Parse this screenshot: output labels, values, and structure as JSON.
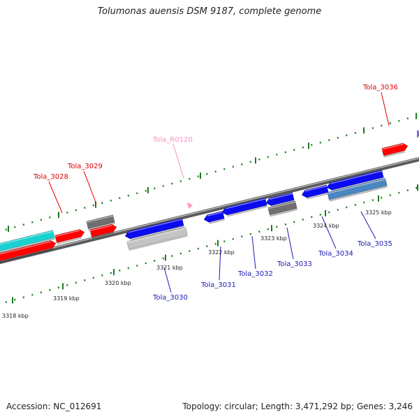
{
  "title": "Tolumonas auensis DSM 9187, complete genome",
  "accession": "Accession: NC_012691",
  "summary": "Topology: circular; Length: 3,471,292 bp; Genes: 3,246",
  "colors": {
    "backbone": "#8a8a8a",
    "tick": "#1f7a1f",
    "red": "#ff0000",
    "blue": "#0b0bef",
    "grey": "#6f6f6f",
    "lightgrey": "#c4c4c4",
    "cyan": "#19d1d1",
    "steel": "#4a86c0",
    "pink": "#ff9ac8",
    "purple": "#7a6ee0",
    "label_red": "#e00000",
    "label_blue": "#1a1ab4",
    "label_pink": "#ff8cc0",
    "tick_label": "#222222"
  },
  "scale_labels": [
    {
      "text": "3318 kbp",
      "kbp": 3318
    },
    {
      "text": "3319 kbp",
      "kbp": 3319
    },
    {
      "text": "3320 kbp",
      "kbp": 3320
    },
    {
      "text": "3321 kbp",
      "kbp": 3321
    },
    {
      "text": "3322 kbp",
      "kbp": 3322
    },
    {
      "text": "3323 kbp",
      "kbp": 3323
    },
    {
      "text": "3324 kbp",
      "kbp": 3324
    },
    {
      "text": "3325 kbp",
      "kbp": 3325
    }
  ],
  "gene_labels": [
    {
      "text": "Tola_3028",
      "color": "label_red"
    },
    {
      "text": "Tola_3029",
      "color": "label_red"
    },
    {
      "text": "Tola_R0120",
      "color": "label_pink"
    },
    {
      "text": "Tola_3036",
      "color": "label_red"
    },
    {
      "text": "Tola_3030",
      "color": "label_blue"
    },
    {
      "text": "Tola_3031",
      "color": "label_blue"
    },
    {
      "text": "Tola_3032",
      "color": "label_blue"
    },
    {
      "text": "Tola_3033",
      "color": "label_blue"
    },
    {
      "text": "Tola_3034",
      "color": "label_blue"
    },
    {
      "text": "Tola_3035",
      "color": "label_blue"
    }
  ]
}
